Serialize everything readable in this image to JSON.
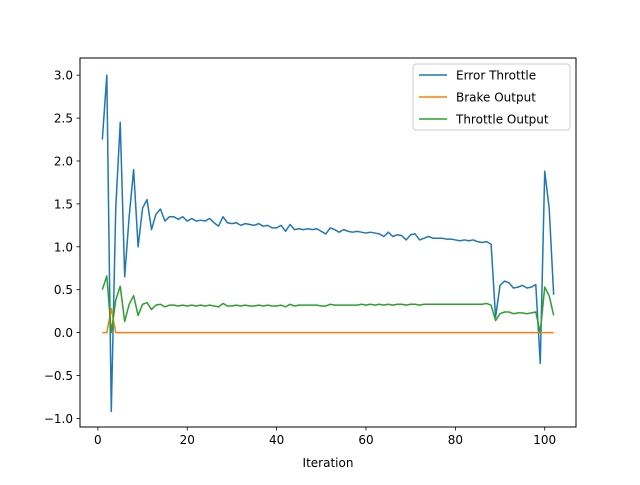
{
  "chart_data": {
    "type": "line",
    "title": "",
    "xlabel": "Iteration",
    "ylabel": "",
    "xlim": [
      -4,
      107
    ],
    "ylim": [
      -1.1,
      3.2
    ],
    "xticks": [
      0,
      20,
      40,
      60,
      80,
      100
    ],
    "yticks": [
      -1.0,
      -0.5,
      0.0,
      0.5,
      1.0,
      1.5,
      2.0,
      2.5,
      3.0
    ],
    "ytick_labels": [
      "−1.0",
      "−0.5",
      "0.0",
      "0.5",
      "1.0",
      "1.5",
      "2.0",
      "2.5",
      "3.0"
    ],
    "grid": false,
    "legend_position": "top-right",
    "series": [
      {
        "name": "Error Throttle",
        "color": "#1f77b4",
        "x": [
          1,
          2,
          3,
          4,
          5,
          6,
          7,
          8,
          9,
          10,
          11,
          12,
          13,
          14,
          15,
          16,
          17,
          18,
          19,
          20,
          21,
          22,
          23,
          24,
          25,
          26,
          27,
          28,
          29,
          30,
          31,
          32,
          33,
          34,
          35,
          36,
          37,
          38,
          39,
          40,
          41,
          42,
          43,
          44,
          45,
          46,
          47,
          48,
          49,
          50,
          51,
          52,
          53,
          54,
          55,
          56,
          57,
          58,
          59,
          60,
          61,
          62,
          63,
          64,
          65,
          66,
          67,
          68,
          69,
          70,
          71,
          72,
          73,
          74,
          75,
          76,
          77,
          78,
          79,
          80,
          81,
          82,
          83,
          84,
          85,
          86,
          87,
          88,
          89,
          90,
          91,
          92,
          93,
          94,
          95,
          96,
          97,
          98,
          99,
          100,
          101,
          102
        ],
        "y": [
          2.25,
          3.0,
          -0.92,
          1.45,
          2.45,
          0.65,
          1.35,
          1.9,
          1.0,
          1.45,
          1.55,
          1.2,
          1.38,
          1.44,
          1.3,
          1.35,
          1.35,
          1.32,
          1.35,
          1.3,
          1.33,
          1.3,
          1.31,
          1.3,
          1.33,
          1.28,
          1.24,
          1.35,
          1.28,
          1.27,
          1.28,
          1.25,
          1.27,
          1.26,
          1.25,
          1.27,
          1.24,
          1.25,
          1.22,
          1.22,
          1.25,
          1.18,
          1.26,
          1.2,
          1.21,
          1.2,
          1.21,
          1.2,
          1.21,
          1.18,
          1.15,
          1.22,
          1.2,
          1.17,
          1.2,
          1.18,
          1.17,
          1.18,
          1.17,
          1.16,
          1.17,
          1.16,
          1.15,
          1.12,
          1.17,
          1.12,
          1.14,
          1.13,
          1.08,
          1.14,
          1.15,
          1.08,
          1.1,
          1.12,
          1.1,
          1.1,
          1.1,
          1.09,
          1.09,
          1.08,
          1.07,
          1.08,
          1.07,
          1.08,
          1.06,
          1.05,
          1.06,
          1.03,
          0.18,
          0.55,
          0.6,
          0.58,
          0.52,
          0.53,
          0.55,
          0.52,
          0.53,
          0.56,
          -0.36,
          1.88,
          1.45,
          0.44
        ]
      },
      {
        "name": "Brake Output",
        "color": "#ff7f0e",
        "x": [
          1,
          2,
          3,
          4,
          102
        ],
        "y": [
          0.0,
          0.0,
          0.28,
          0.0,
          0.0
        ]
      },
      {
        "name": "Throttle Output",
        "color": "#2ca02c",
        "x": [
          1,
          2,
          3,
          4,
          5,
          6,
          7,
          8,
          9,
          10,
          11,
          12,
          13,
          14,
          15,
          16,
          17,
          18,
          19,
          20,
          21,
          22,
          23,
          24,
          25,
          26,
          27,
          28,
          29,
          30,
          31,
          32,
          33,
          34,
          35,
          36,
          37,
          38,
          39,
          40,
          41,
          42,
          43,
          44,
          45,
          46,
          47,
          48,
          49,
          50,
          51,
          52,
          53,
          54,
          55,
          56,
          57,
          58,
          59,
          60,
          61,
          62,
          63,
          64,
          65,
          66,
          67,
          68,
          69,
          70,
          71,
          72,
          73,
          74,
          75,
          76,
          77,
          78,
          79,
          80,
          81,
          82,
          83,
          84,
          85,
          86,
          87,
          88,
          89,
          90,
          91,
          92,
          93,
          94,
          95,
          96,
          97,
          98,
          99,
          100,
          101,
          102
        ],
        "y": [
          0.5,
          0.66,
          0.0,
          0.38,
          0.54,
          0.13,
          0.33,
          0.43,
          0.2,
          0.33,
          0.35,
          0.27,
          0.32,
          0.33,
          0.3,
          0.32,
          0.32,
          0.31,
          0.32,
          0.31,
          0.32,
          0.31,
          0.32,
          0.31,
          0.32,
          0.31,
          0.3,
          0.34,
          0.31,
          0.31,
          0.32,
          0.31,
          0.32,
          0.31,
          0.31,
          0.32,
          0.31,
          0.32,
          0.31,
          0.31,
          0.32,
          0.3,
          0.33,
          0.31,
          0.32,
          0.32,
          0.32,
          0.32,
          0.32,
          0.31,
          0.31,
          0.33,
          0.32,
          0.32,
          0.32,
          0.32,
          0.32,
          0.32,
          0.33,
          0.32,
          0.33,
          0.32,
          0.33,
          0.32,
          0.33,
          0.32,
          0.33,
          0.33,
          0.32,
          0.33,
          0.33,
          0.32,
          0.33,
          0.33,
          0.33,
          0.33,
          0.33,
          0.33,
          0.33,
          0.33,
          0.33,
          0.33,
          0.33,
          0.33,
          0.33,
          0.33,
          0.34,
          0.32,
          0.14,
          0.22,
          0.24,
          0.24,
          0.22,
          0.23,
          0.23,
          0.22,
          0.23,
          0.24,
          0.0,
          0.53,
          0.43,
          0.2
        ]
      }
    ]
  }
}
